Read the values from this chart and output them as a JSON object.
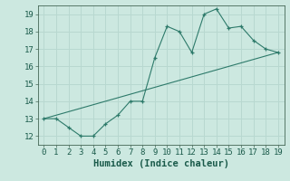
{
  "x": [
    0,
    1,
    2,
    3,
    4,
    5,
    6,
    7,
    8,
    9,
    10,
    11,
    12,
    13,
    14,
    15,
    16,
    17,
    18,
    19
  ],
  "y": [
    13,
    13,
    12.5,
    12,
    12,
    12.7,
    13.2,
    14,
    14,
    16.5,
    18.3,
    18,
    16.8,
    19,
    19.3,
    18.2,
    18.3,
    17.5,
    17,
    16.8
  ],
  "line_color": "#2d7a6a",
  "marker_color": "#2d7a6a",
  "bg_color": "#cce8e0",
  "grid_color": "#b8d8d0",
  "xlabel": "Humidex (Indice chaleur)",
  "xlim": [
    -0.5,
    19.5
  ],
  "ylim": [
    11.5,
    19.5
  ],
  "xticks": [
    0,
    1,
    2,
    3,
    4,
    5,
    6,
    7,
    8,
    9,
    10,
    11,
    12,
    13,
    14,
    15,
    16,
    17,
    18,
    19
  ],
  "yticks": [
    12,
    13,
    14,
    15,
    16,
    17,
    18,
    19
  ],
  "label_fontsize": 7.5,
  "tick_fontsize": 6.5
}
